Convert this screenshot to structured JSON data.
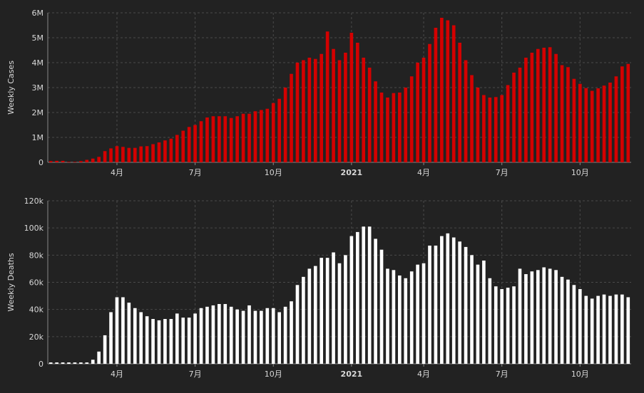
{
  "chart_data": [
    {
      "type": "bar",
      "ylabel": "Weekly Cases",
      "color": "#d40000",
      "ylim": [
        0,
        6000000
      ],
      "y_ticks": [
        {
          "value": 0,
          "label": "0"
        },
        {
          "value": 1000000,
          "label": "1M"
        },
        {
          "value": 2000000,
          "label": "2M"
        },
        {
          "value": 3000000,
          "label": "3M"
        },
        {
          "value": 4000000,
          "label": "4M"
        },
        {
          "value": 5000000,
          "label": "5M"
        },
        {
          "value": 6000000,
          "label": "6M"
        }
      ],
      "x_ticks": [
        {
          "week": 11.5,
          "label": "4月",
          "bold": false
        },
        {
          "week": 24.5,
          "label": "7月",
          "bold": false
        },
        {
          "week": 37.5,
          "label": "10月",
          "bold": false
        },
        {
          "week": 50.5,
          "label": "2021",
          "bold": true
        },
        {
          "week": 62.5,
          "label": "4月",
          "bold": false
        },
        {
          "week": 75.5,
          "label": "7月",
          "bold": false
        },
        {
          "week": 88.5,
          "label": "10月",
          "bold": false
        }
      ],
      "values": [
        50000,
        60000,
        60000,
        20000,
        20000,
        50000,
        100000,
        150000,
        220000,
        450000,
        560000,
        650000,
        620000,
        580000,
        580000,
        640000,
        650000,
        730000,
        800000,
        880000,
        950000,
        1100000,
        1270000,
        1420000,
        1500000,
        1650000,
        1800000,
        1850000,
        1850000,
        1850000,
        1780000,
        1850000,
        1950000,
        1950000,
        2050000,
        2100000,
        2150000,
        2380000,
        2550000,
        3000000,
        3550000,
        4000000,
        4100000,
        4200000,
        4150000,
        4350000,
        5250000,
        4550000,
        4100000,
        4400000,
        5200000,
        4800000,
        4200000,
        3800000,
        3250000,
        2800000,
        2600000,
        2780000,
        2800000,
        3000000,
        3450000,
        4000000,
        4200000,
        4750000,
        5400000,
        5800000,
        5700000,
        5500000,
        4800000,
        4100000,
        3500000,
        3000000,
        2700000,
        2600000,
        2620000,
        2700000,
        3100000,
        3600000,
        3800000,
        4200000,
        4400000,
        4550000,
        4600000,
        4620000,
        4350000,
        3900000,
        3820000,
        3350000,
        3150000,
        2980000,
        2870000,
        2970000,
        3080000,
        3200000,
        3450000,
        3850000,
        3950000
      ]
    },
    {
      "type": "bar",
      "ylabel": "Weekly Deaths",
      "color": "#ffffff",
      "ylim": [
        0,
        120000
      ],
      "y_ticks": [
        {
          "value": 0,
          "label": "0"
        },
        {
          "value": 20000,
          "label": "20k"
        },
        {
          "value": 40000,
          "label": "40k"
        },
        {
          "value": 60000,
          "label": "60k"
        },
        {
          "value": 80000,
          "label": "80k"
        },
        {
          "value": 100000,
          "label": "100k"
        },
        {
          "value": 120000,
          "label": "120k"
        }
      ],
      "x_ticks": [
        {
          "week": 11.5,
          "label": "4月",
          "bold": false
        },
        {
          "week": 24.5,
          "label": "7月",
          "bold": false
        },
        {
          "week": 37.5,
          "label": "10月",
          "bold": false
        },
        {
          "week": 50.5,
          "label": "2021",
          "bold": true
        },
        {
          "week": 62.5,
          "label": "4月",
          "bold": false
        },
        {
          "week": 75.5,
          "label": "7月",
          "bold": false
        },
        {
          "week": 88.5,
          "label": "10月",
          "bold": false
        }
      ],
      "values": [
        1000,
        1000,
        1000,
        1000,
        1000,
        1000,
        1000,
        3000,
        9000,
        21000,
        38000,
        49000,
        49000,
        45000,
        41000,
        38000,
        35000,
        33000,
        32000,
        33000,
        33000,
        37000,
        34000,
        34000,
        37000,
        41000,
        42000,
        43000,
        44000,
        44000,
        42000,
        40000,
        39000,
        43000,
        39000,
        39000,
        41000,
        41000,
        38000,
        42000,
        46000,
        58000,
        64000,
        70000,
        72000,
        78000,
        78000,
        82000,
        74000,
        80000,
        94000,
        97000,
        101000,
        101000,
        92000,
        84000,
        70000,
        69000,
        65000,
        63000,
        68000,
        73000,
        74000,
        87000,
        87000,
        94000,
        96000,
        93000,
        90000,
        86000,
        80000,
        73000,
        76000,
        63000,
        57000,
        55000,
        56000,
        57000,
        70000,
        66000,
        68000,
        69000,
        71000,
        70000,
        69000,
        64000,
        62000,
        58000,
        55000,
        50000,
        48000,
        50000,
        51000,
        50000,
        51000,
        51000,
        49000
      ]
    }
  ]
}
